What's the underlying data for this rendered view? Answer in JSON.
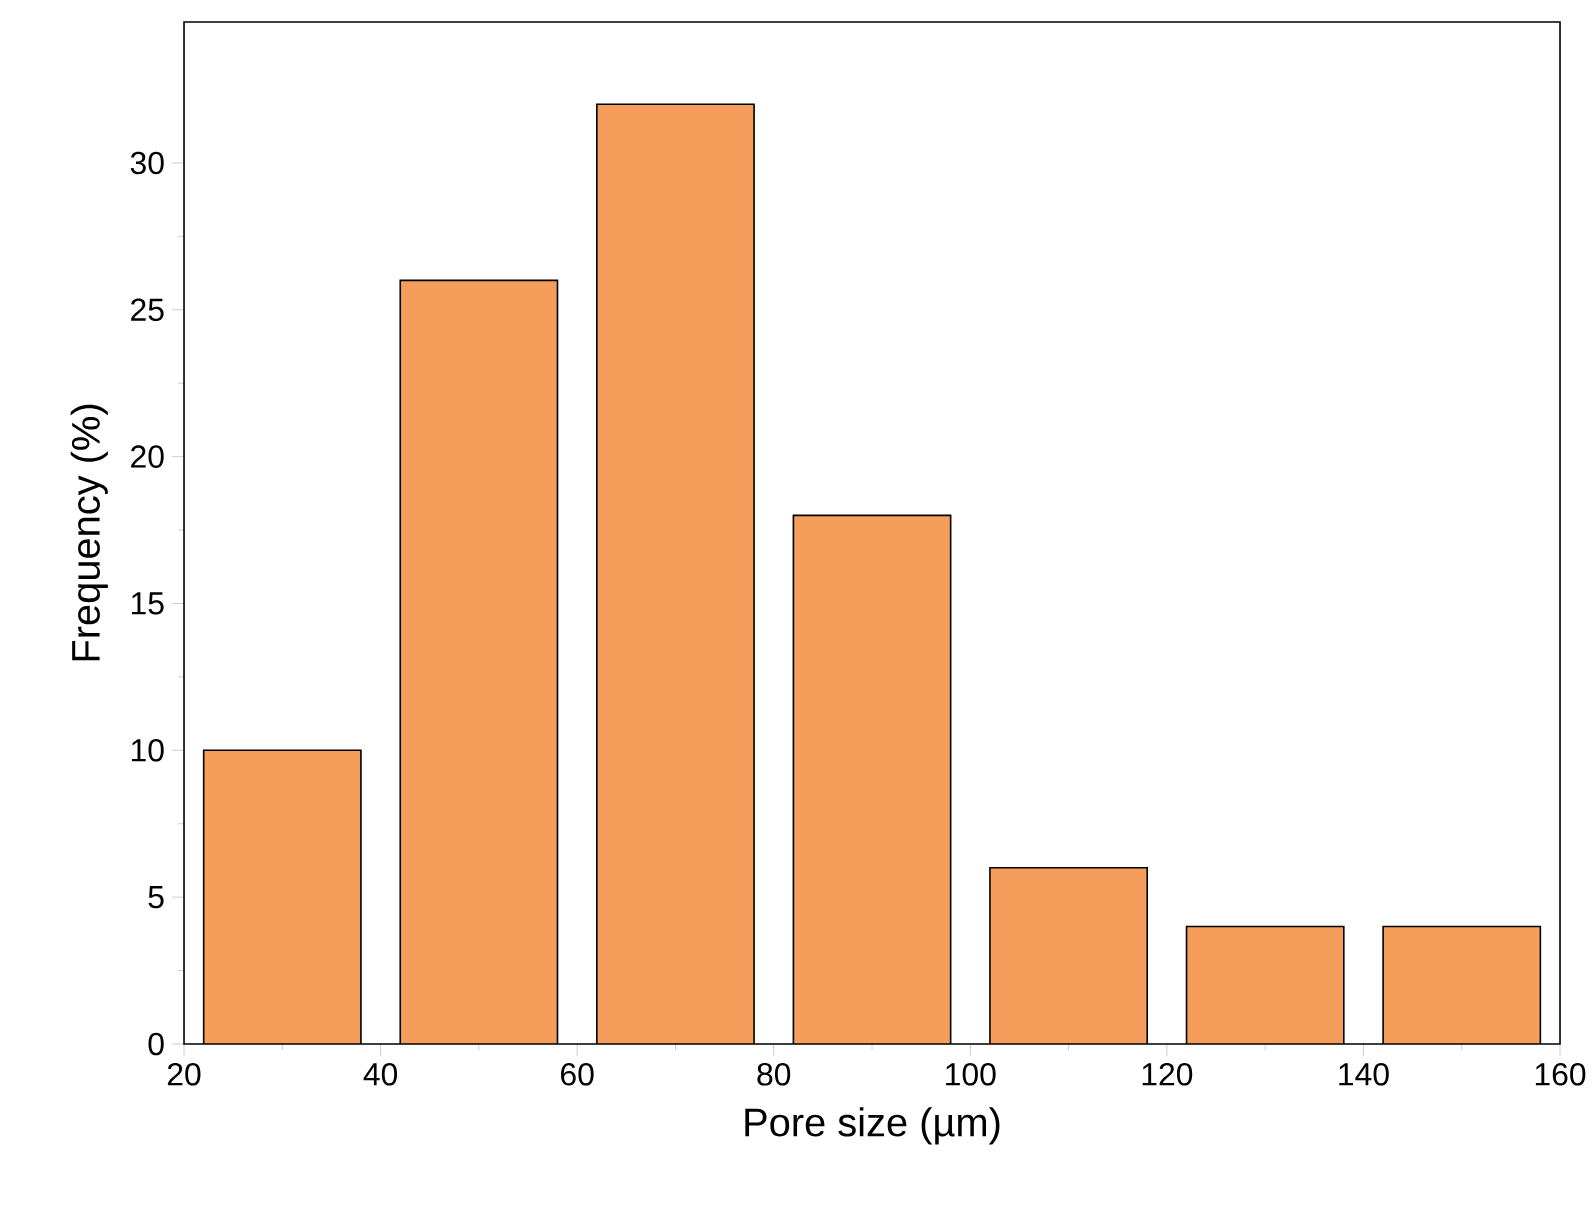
{
  "chart_data": {
    "type": "histogram",
    "xlabel": "Pore size (µm)",
    "ylabel": "Frequency (%)",
    "bins": [
      20,
      40,
      60,
      80,
      100,
      120,
      140,
      160
    ],
    "values": [
      10,
      26,
      32,
      18,
      6,
      4,
      4
    ],
    "color": "#f59d5b",
    "xlim": [
      20,
      160
    ],
    "xticks": [
      20,
      40,
      60,
      80,
      100,
      120,
      140,
      160
    ],
    "ylim": [
      0,
      34.8
    ],
    "yticks": [
      0,
      5,
      10,
      15,
      20,
      25,
      30
    ],
    "grid": false
  }
}
